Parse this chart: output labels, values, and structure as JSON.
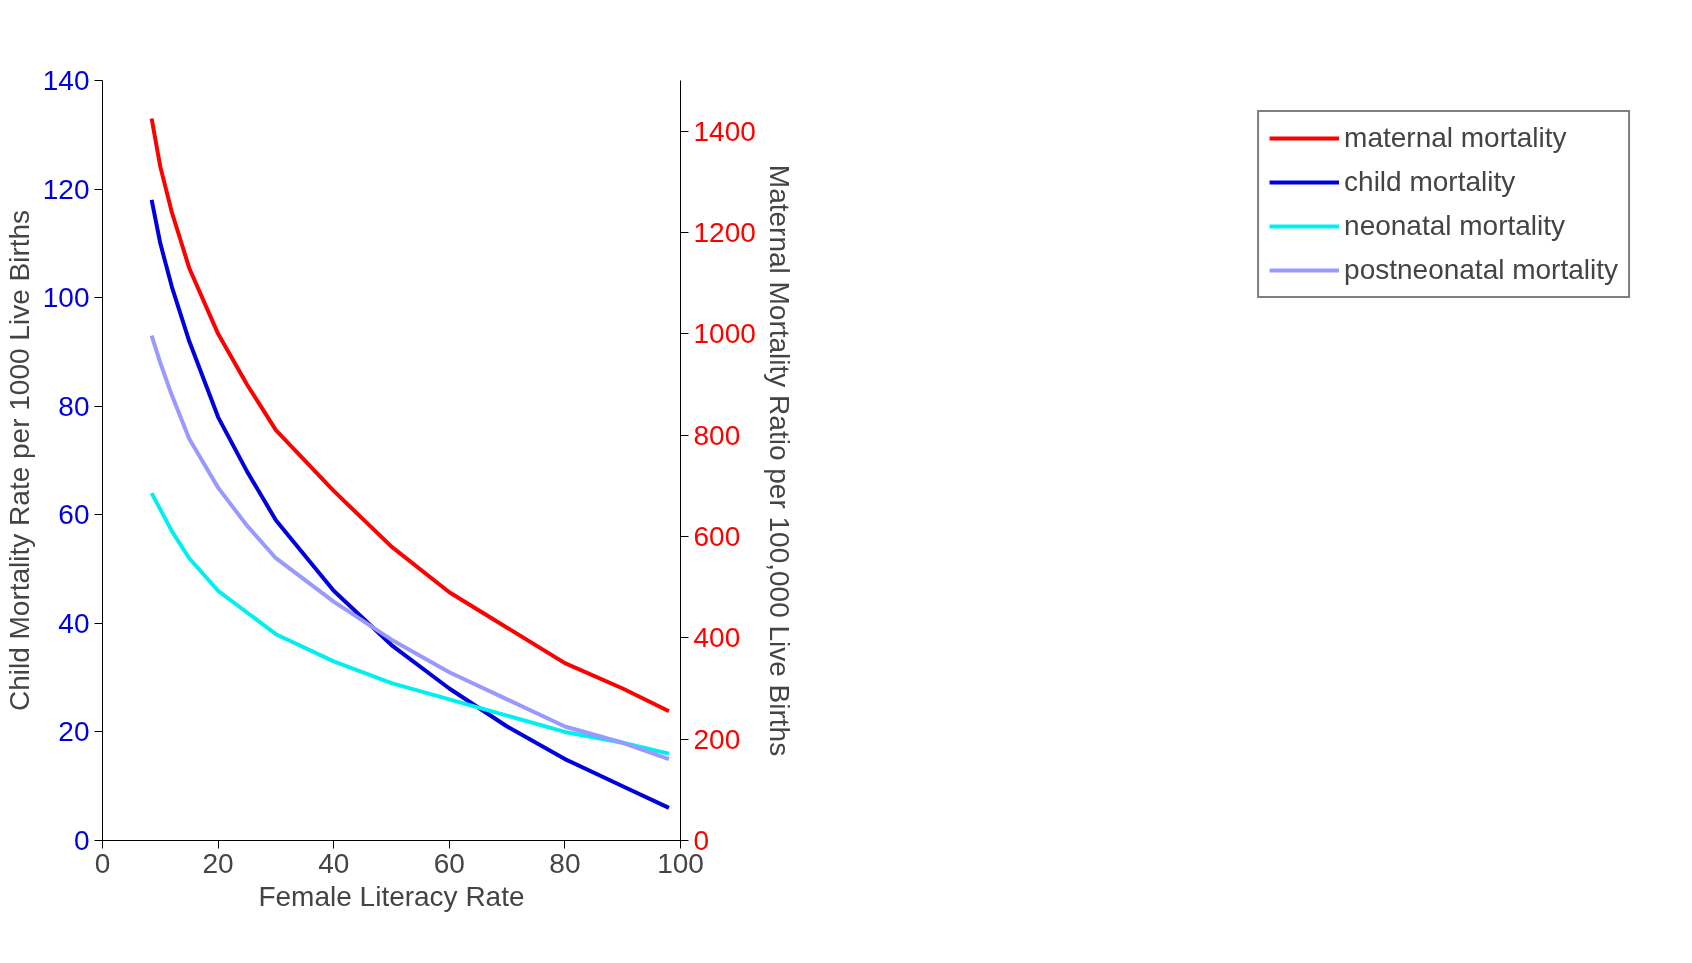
{
  "chart_data": {
    "type": "line",
    "xlabel": "Female Literacy Rate",
    "ylabel": "Child Mortality Rate per 1000 Live Births",
    "y2label": "Maternal Mortality Ratio per 100,000 Live Births",
    "x": [
      8.5,
      10,
      12,
      15,
      20,
      25,
      30,
      40,
      50,
      60,
      70,
      80,
      90,
      98
    ],
    "xlim": [
      0,
      100
    ],
    "xticks": [
      0,
      20,
      40,
      60,
      80,
      100
    ],
    "ylim": [
      0,
      140
    ],
    "yticks": [
      0,
      20,
      40,
      60,
      80,
      100,
      120,
      140
    ],
    "y2lim": [
      0,
      1500
    ],
    "y2ticks": [
      0,
      200,
      400,
      600,
      800,
      1000,
      1200,
      1400
    ],
    "grid": false,
    "legend": "right",
    "marker": "none",
    "line_style": "solid",
    "series": [
      {
        "name": "maternal mortality",
        "color": "#ff0000",
        "axis": "y2",
        "values": [
          1425,
          1330,
          1240,
          1130,
          1000,
          900,
          810,
          690,
          580,
          490,
          420,
          350,
          300,
          255
        ]
      },
      {
        "name": "child mortality",
        "color": "#0000dd",
        "values": [
          118,
          110,
          102,
          92,
          78,
          68,
          59,
          46,
          36,
          28,
          21,
          15,
          10,
          6
        ]
      },
      {
        "name": "neonatal mortality",
        "color": "#00f0f0",
        "values": [
          64,
          61,
          57,
          52,
          46,
          42,
          38,
          33,
          29,
          26,
          23,
          20,
          18,
          16
        ]
      },
      {
        "name": "postneonatal mortality",
        "color": "#9999ff",
        "values": [
          93,
          88,
          82,
          74,
          65,
          58,
          52,
          44,
          37,
          31,
          26,
          21,
          18,
          15
        ]
      }
    ]
  }
}
